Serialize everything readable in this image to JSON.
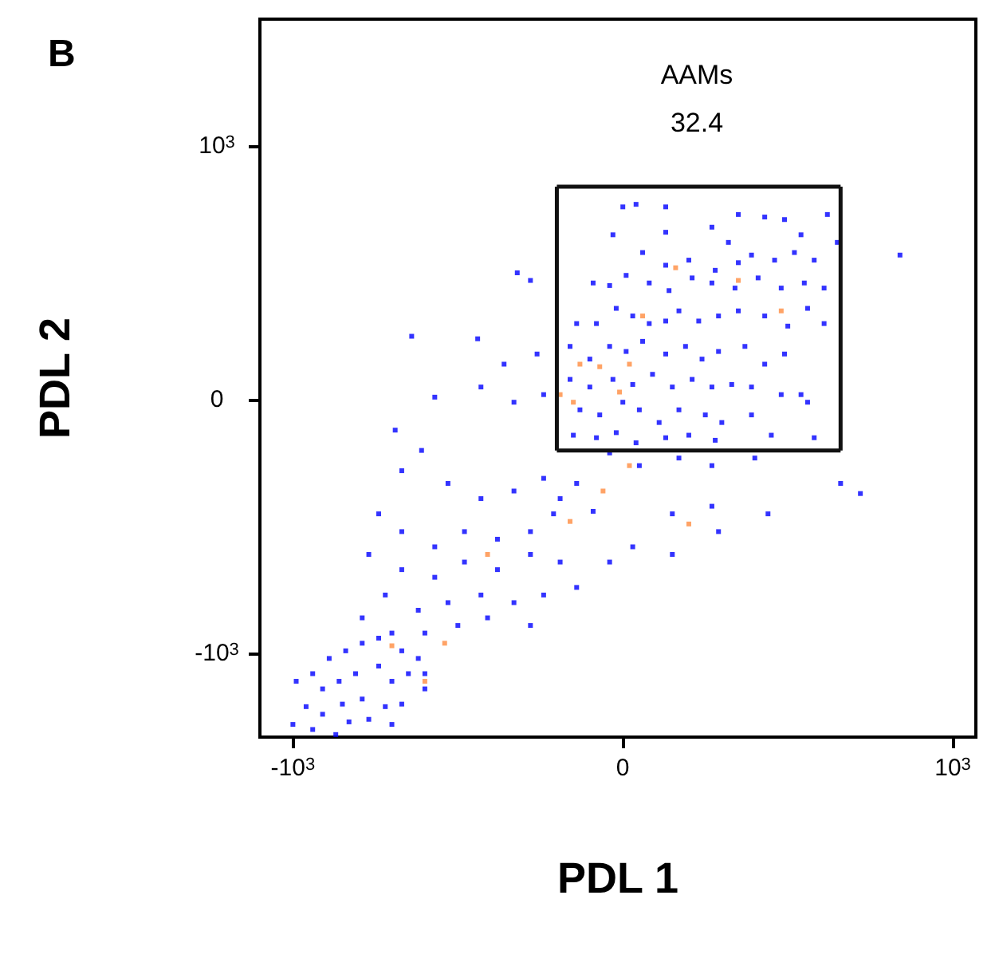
{
  "chart_data": {
    "type": "scatter",
    "xlabel": "PDL 1",
    "ylabel": "PDL 2",
    "xlim": [
      -1100,
      1070
    ],
    "ylim": [
      -1330,
      1500
    ],
    "xticks": [
      {
        "value": -1000,
        "label": "-10$^{3}$"
      },
      0,
      {
        "value": 1000,
        "label": "10$^{3}$"
      }
    ],
    "yticks": [
      {
        "value": -1000,
        "label": "-10$^{3}$"
      },
      0,
      {
        "value": 1000,
        "label": "10$^{3}$"
      }
    ],
    "grid": false,
    "marker": "square",
    "annotations": [
      "B",
      "AAMs",
      "32.4"
    ],
    "series": [
      {
        "color": "#0000ff",
        "x": [
          0,
          40,
          130,
          -30,
          130,
          270,
          320,
          350,
          430,
          490,
          540,
          620,
          60,
          130,
          200,
          280,
          350,
          390,
          460,
          520,
          580,
          650,
          -90,
          -40,
          10,
          80,
          140,
          210,
          270,
          340,
          410,
          480,
          550,
          610,
          -140,
          -80,
          -20,
          30,
          80,
          130,
          170,
          230,
          290,
          350,
          430,
          500,
          560,
          610,
          -160,
          -100,
          -40,
          10,
          60,
          130,
          190,
          240,
          290,
          370,
          430,
          490,
          -160,
          -100,
          -30,
          30,
          90,
          150,
          210,
          270,
          330,
          390,
          480,
          540,
          -130,
          -70,
          0,
          50,
          110,
          170,
          250,
          300,
          390,
          560,
          -150,
          -80,
          -20,
          40,
          130,
          200,
          280,
          450,
          580,
          840,
          -640,
          -440,
          -320,
          -280,
          -360,
          -570,
          -430,
          -330,
          -260,
          -240,
          -690,
          -610,
          -40,
          50,
          170,
          270,
          400,
          660,
          720,
          -140,
          -190,
          -90,
          150,
          270,
          440,
          -670,
          -530,
          -430,
          -330,
          -240,
          -210,
          -280,
          -380,
          -480,
          -570,
          -670,
          -740,
          -770,
          -670,
          -570,
          -480,
          -380,
          -280,
          -190,
          -240,
          -330,
          -430,
          -530,
          -620,
          -720,
          -790,
          -700,
          -600,
          -500,
          -410,
          -280,
          -140,
          -40,
          30,
          150,
          290,
          -990,
          -940,
          -890,
          -840,
          -790,
          -740,
          -670,
          -620,
          -910,
          -860,
          -810,
          -740,
          -700,
          -650,
          -960,
          -910,
          -850,
          -790,
          -720,
          -670,
          -600,
          -1000,
          -940,
          -870,
          -830,
          -770,
          -700,
          -600
        ],
        "values": [
          760,
          770,
          760,
          650,
          660,
          680,
          620,
          730,
          720,
          710,
          650,
          730,
          580,
          530,
          550,
          510,
          540,
          570,
          550,
          580,
          550,
          620,
          460,
          450,
          490,
          460,
          430,
          480,
          460,
          440,
          480,
          440,
          460,
          440,
          300,
          300,
          360,
          330,
          300,
          310,
          350,
          310,
          330,
          350,
          330,
          290,
          360,
          300,
          210,
          160,
          210,
          190,
          230,
          180,
          210,
          160,
          190,
          210,
          140,
          180,
          80,
          50,
          80,
          60,
          100,
          50,
          80,
          50,
          60,
          50,
          20,
          20,
          -40,
          -60,
          -10,
          -40,
          -90,
          -40,
          -60,
          -90,
          -60,
          -10,
          -140,
          -150,
          -130,
          -170,
          -150,
          -140,
          -160,
          -140,
          -150,
          570,
          250,
          240,
          500,
          470,
          140,
          10,
          50,
          -10,
          180,
          20,
          -120,
          -200,
          -210,
          -260,
          -230,
          -260,
          -230,
          -330,
          -370,
          -330,
          -390,
          -440,
          -450,
          -420,
          -450,
          -280,
          -330,
          -390,
          -360,
          -310,
          -450,
          -520,
          -550,
          -520,
          -580,
          -520,
          -450,
          -610,
          -670,
          -700,
          -640,
          -670,
          -610,
          -640,
          -770,
          -800,
          -770,
          -800,
          -830,
          -770,
          -860,
          -920,
          -920,
          -890,
          -860,
          -890,
          -740,
          -640,
          -580,
          -610,
          -520,
          -1110,
          -1080,
          -1020,
          -990,
          -960,
          -940,
          -990,
          -1020,
          -1140,
          -1110,
          -1080,
          -1050,
          -1110,
          -1080,
          -1210,
          -1240,
          -1200,
          -1180,
          -1210,
          -1200,
          -1140,
          -1280,
          -1300,
          -1320,
          -1270,
          -1260,
          -1280,
          -1080
        ]
      },
      {
        "color": "#ff8c40",
        "x": [
          160,
          350,
          480,
          60,
          20,
          -130,
          -70,
          -190,
          -150,
          -10,
          -60,
          20,
          200,
          -540,
          -600,
          -700,
          -410,
          -160
        ],
        "values": [
          520,
          470,
          350,
          330,
          140,
          140,
          130,
          20,
          -10,
          30,
          -360,
          -260,
          -490,
          -960,
          -1110,
          -970,
          -610,
          -480
        ]
      },
      {
        "type": "line",
        "color": "#111111",
        "line_style": "solid",
        "marker": "none",
        "x": [
          -200,
          660
        ],
        "values": [
          840,
          840
        ]
      },
      {
        "type": "line",
        "color": "#111111",
        "line_style": "solid",
        "marker": "none",
        "x": [
          660,
          660
        ],
        "values": [
          840,
          -200
        ]
      },
      {
        "type": "line",
        "color": "#111111",
        "line_style": "solid",
        "marker": "none",
        "x": [
          -200,
          660
        ],
        "values": [
          -200,
          -200
        ]
      },
      {
        "type": "line",
        "color": "#111111",
        "line_style": "solid",
        "marker": "none",
        "x": [
          -200,
          -200
        ],
        "values": [
          840,
          -200
        ]
      }
    ]
  }
}
